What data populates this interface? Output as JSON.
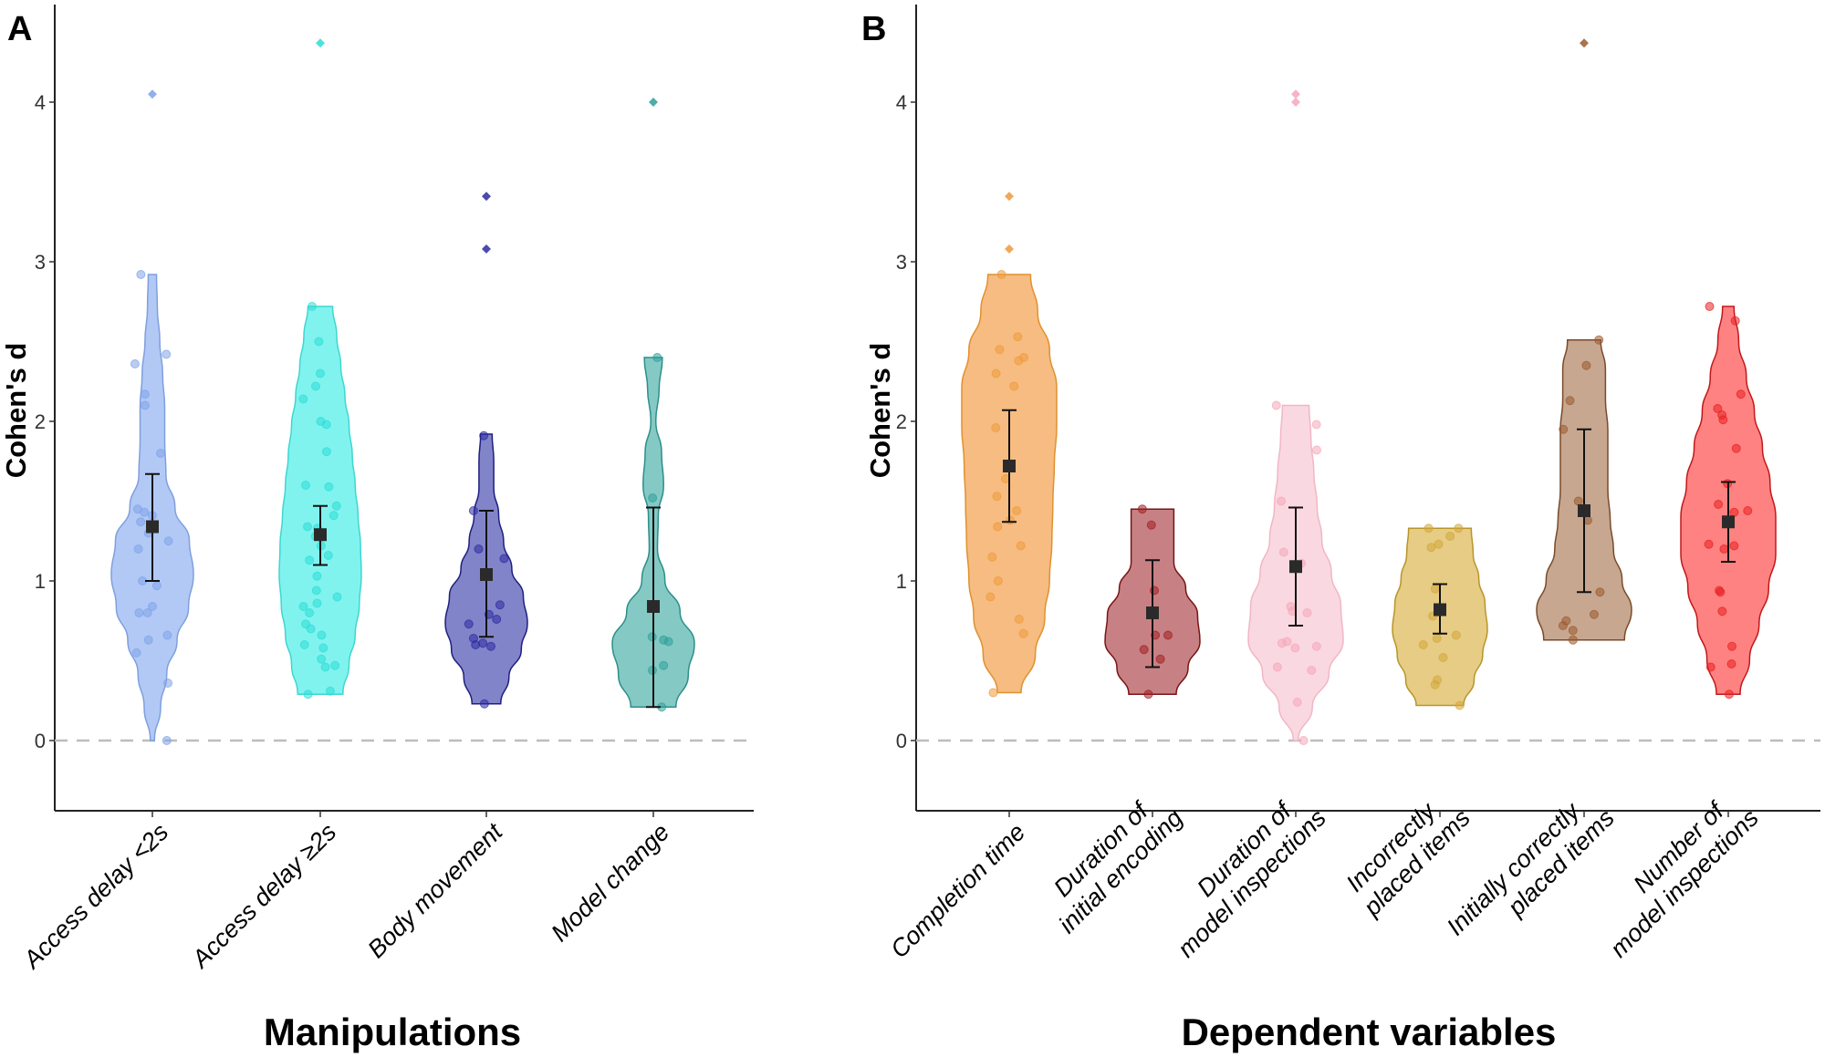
{
  "chart_data": [
    {
      "panel": "A",
      "type": "violin",
      "title": "",
      "xlabel": "Manipulations",
      "ylabel": "Cohen's d",
      "ylim": [
        -0.45,
        4.6
      ],
      "yticks": [
        0,
        1,
        2,
        3,
        4
      ],
      "reference_line": {
        "y": 0,
        "style": "dashed"
      },
      "grid": false,
      "legend": "none",
      "categories": [
        {
          "label": "Access delay <2s",
          "color": "#AEC6F4",
          "stroke": "#7F9FDD",
          "point_color": "#7FA3E8",
          "mean": 1.34,
          "ci": [
            1.0,
            1.67
          ],
          "range": [
            0.0,
            2.92
          ],
          "density": [
            0.05,
            0.2,
            0.35,
            0.6,
            0.88,
            1.0,
            0.9,
            0.55,
            0.33,
            0.3,
            0.3,
            0.25,
            0.18,
            0.12,
            0.1
          ],
          "points": [
            0.0,
            0.36,
            0.55,
            0.63,
            0.66,
            0.8,
            0.8,
            0.84,
            0.97,
            1.0,
            1.2,
            1.25,
            1.3,
            1.37,
            1.41,
            1.43,
            1.45,
            1.8,
            2.1,
            2.17,
            2.36,
            2.42,
            2.92
          ],
          "outliers": [
            4.05
          ]
        },
        {
          "label": "Access delay ≥2s",
          "color": "#7AF2EE",
          "stroke": "#3FD6D0",
          "point_color": "#2EDDD6",
          "mean": 1.29,
          "ci": [
            1.1,
            1.47
          ],
          "range": [
            0.29,
            2.72
          ],
          "density": [
            0.55,
            0.7,
            0.85,
            0.95,
            1.0,
            0.98,
            0.92,
            0.85,
            0.78,
            0.7,
            0.6,
            0.5,
            0.4,
            0.3
          ],
          "points": [
            0.29,
            0.31,
            0.46,
            0.47,
            0.51,
            0.58,
            0.6,
            0.66,
            0.7,
            0.73,
            0.8,
            0.84,
            0.86,
            0.9,
            0.94,
            1.03,
            1.13,
            1.16,
            1.22,
            1.28,
            1.33,
            1.34,
            1.41,
            1.47,
            1.59,
            1.6,
            1.81,
            1.98,
            2.0,
            2.14,
            2.22,
            2.3,
            2.5,
            2.72
          ],
          "outliers": [
            4.37
          ]
        },
        {
          "label": "Body movement",
          "color": "#7B7DC6",
          "stroke": "#1F1F80",
          "point_color": "#2B2B9E",
          "mean": 1.04,
          "ci": [
            0.65,
            1.44
          ],
          "range": [
            0.23,
            1.92
          ],
          "density": [
            0.35,
            0.55,
            0.85,
            1.0,
            0.9,
            0.62,
            0.42,
            0.3,
            0.18,
            0.18,
            0.14
          ],
          "points": [
            0.23,
            0.59,
            0.6,
            0.61,
            0.64,
            0.73,
            0.76,
            0.79,
            0.85,
            1.14,
            1.2,
            1.44,
            1.91
          ],
          "outliers": [
            3.41,
            3.08
          ]
        },
        {
          "label": "Model change",
          "color": "#7EC6C2",
          "stroke": "#2C8F8A",
          "point_color": "#2EA09A",
          "mean": 0.84,
          "ci": [
            0.21,
            1.46
          ],
          "range": [
            0.21,
            2.4
          ],
          "density": [
            0.55,
            0.85,
            1.0,
            0.65,
            0.28,
            0.1,
            0.12,
            0.25,
            0.2,
            0.06,
            0.14,
            0.22
          ],
          "points": [
            0.21,
            0.44,
            0.47,
            0.62,
            0.63,
            0.65,
            1.52,
            2.4
          ],
          "outliers": [
            4.0
          ]
        }
      ]
    },
    {
      "panel": "B",
      "type": "violin",
      "title": "",
      "xlabel": "Dependent variables",
      "ylabel": "Cohen's d",
      "ylim": [
        -0.45,
        4.6
      ],
      "yticks": [
        0,
        1,
        2,
        3,
        4
      ],
      "reference_line": {
        "y": 0,
        "style": "dashed"
      },
      "grid": false,
      "legend": "none",
      "categories": [
        {
          "label": [
            "Completion time"
          ],
          "color": "#F5B87A",
          "stroke": "#E0912E",
          "point_color": "#EE9A3C",
          "mean": 1.72,
          "ci": [
            1.37,
            2.07
          ],
          "range": [
            0.3,
            2.92
          ],
          "density": [
            0.25,
            0.55,
            0.75,
            0.85,
            0.9,
            0.92,
            0.95,
            1.0,
            1.0,
            0.85,
            0.6,
            0.45
          ],
          "points": [
            0.3,
            0.67,
            0.76,
            0.9,
            1.0,
            1.15,
            1.22,
            1.34,
            1.38,
            1.44,
            1.53,
            1.64,
            1.96,
            2.22,
            2.3,
            2.38,
            2.4,
            2.45,
            2.53,
            2.92
          ],
          "outliers": [
            3.41,
            3.08
          ]
        },
        {
          "label": [
            "Duration of",
            "initial encoding"
          ],
          "color": "#C47A7D",
          "stroke": "#7A1414",
          "point_color": "#A11F22",
          "mean": 0.8,
          "ci": [
            0.46,
            1.13
          ],
          "range": [
            0.29,
            1.45
          ],
          "density": [
            0.5,
            0.75,
            1.0,
            0.95,
            0.7,
            0.45,
            0.45,
            0.45
          ],
          "points": [
            0.29,
            0.51,
            0.57,
            0.66,
            0.66,
            0.94,
            1.35,
            1.45
          ],
          "outliers": []
        },
        {
          "label": [
            "Duration of",
            "model inspections"
          ],
          "color": "#FAD6DF",
          "stroke": "#F1B6C5",
          "point_color": "#F4A7BA",
          "mean": 1.09,
          "ci": [
            0.72,
            1.46
          ],
          "range": [
            0.0,
            2.1
          ],
          "density": [
            0.05,
            0.35,
            0.7,
            1.0,
            0.95,
            0.75,
            0.55,
            0.45,
            0.38,
            0.32,
            0.28
          ],
          "points": [
            0.0,
            0.24,
            0.44,
            0.46,
            0.58,
            0.59,
            0.61,
            0.62,
            0.8,
            0.81,
            0.84,
            1.11,
            1.18,
            1.5,
            1.82,
            1.98,
            2.1
          ],
          "outliers": [
            4.05,
            4.0
          ]
        },
        {
          "label": [
            "Incorrectly",
            "placed items"
          ],
          "color": "#E6C97E",
          "stroke": "#B8952A",
          "point_color": "#D1A83A",
          "mean": 0.82,
          "ci": [
            0.67,
            0.98
          ],
          "range": [
            0.22,
            1.33
          ],
          "density": [
            0.5,
            0.72,
            0.9,
            1.0,
            0.95,
            0.82,
            0.7,
            0.66
          ],
          "points": [
            0.22,
            0.35,
            0.38,
            0.52,
            0.6,
            0.64,
            0.66,
            0.78,
            0.95,
            1.21,
            1.23,
            1.28,
            1.33,
            1.33
          ],
          "outliers": []
        },
        {
          "label": [
            "Initially correctly",
            "placed items"
          ],
          "color": "#C4A28A",
          "stroke": "#7A4A2A",
          "point_color": "#9A5A2E",
          "mean": 1.44,
          "ci": [
            0.93,
            1.95
          ],
          "range": [
            0.63,
            2.51
          ],
          "density": [
            0.85,
            1.0,
            0.8,
            0.62,
            0.55,
            0.5,
            0.5,
            0.5,
            0.45,
            0.45,
            0.35
          ],
          "points": [
            0.63,
            0.69,
            0.72,
            0.75,
            0.79,
            0.93,
            1.38,
            1.5,
            1.95,
            2.13,
            2.35,
            2.51
          ],
          "outliers": [
            4.37
          ]
        },
        {
          "label": [
            "Number of",
            "model inspections"
          ],
          "color": "#FF7B7B",
          "stroke": "#C21818",
          "point_color": "#E82020",
          "mean": 1.37,
          "ci": [
            1.12,
            1.62
          ],
          "range": [
            0.29,
            2.72
          ],
          "density": [
            0.25,
            0.45,
            0.65,
            0.85,
            1.0,
            1.0,
            0.88,
            0.72,
            0.55,
            0.38,
            0.22,
            0.12
          ],
          "points": [
            0.29,
            0.46,
            0.48,
            0.59,
            0.81,
            0.93,
            0.94,
            1.2,
            1.22,
            1.23,
            1.43,
            1.44,
            1.48,
            1.61,
            1.83,
            2.01,
            2.04,
            2.08,
            2.17,
            2.63,
            2.72
          ],
          "outliers": []
        }
      ]
    }
  ],
  "labels": {
    "panel_a_letter": "A",
    "panel_b_letter": "B"
  }
}
